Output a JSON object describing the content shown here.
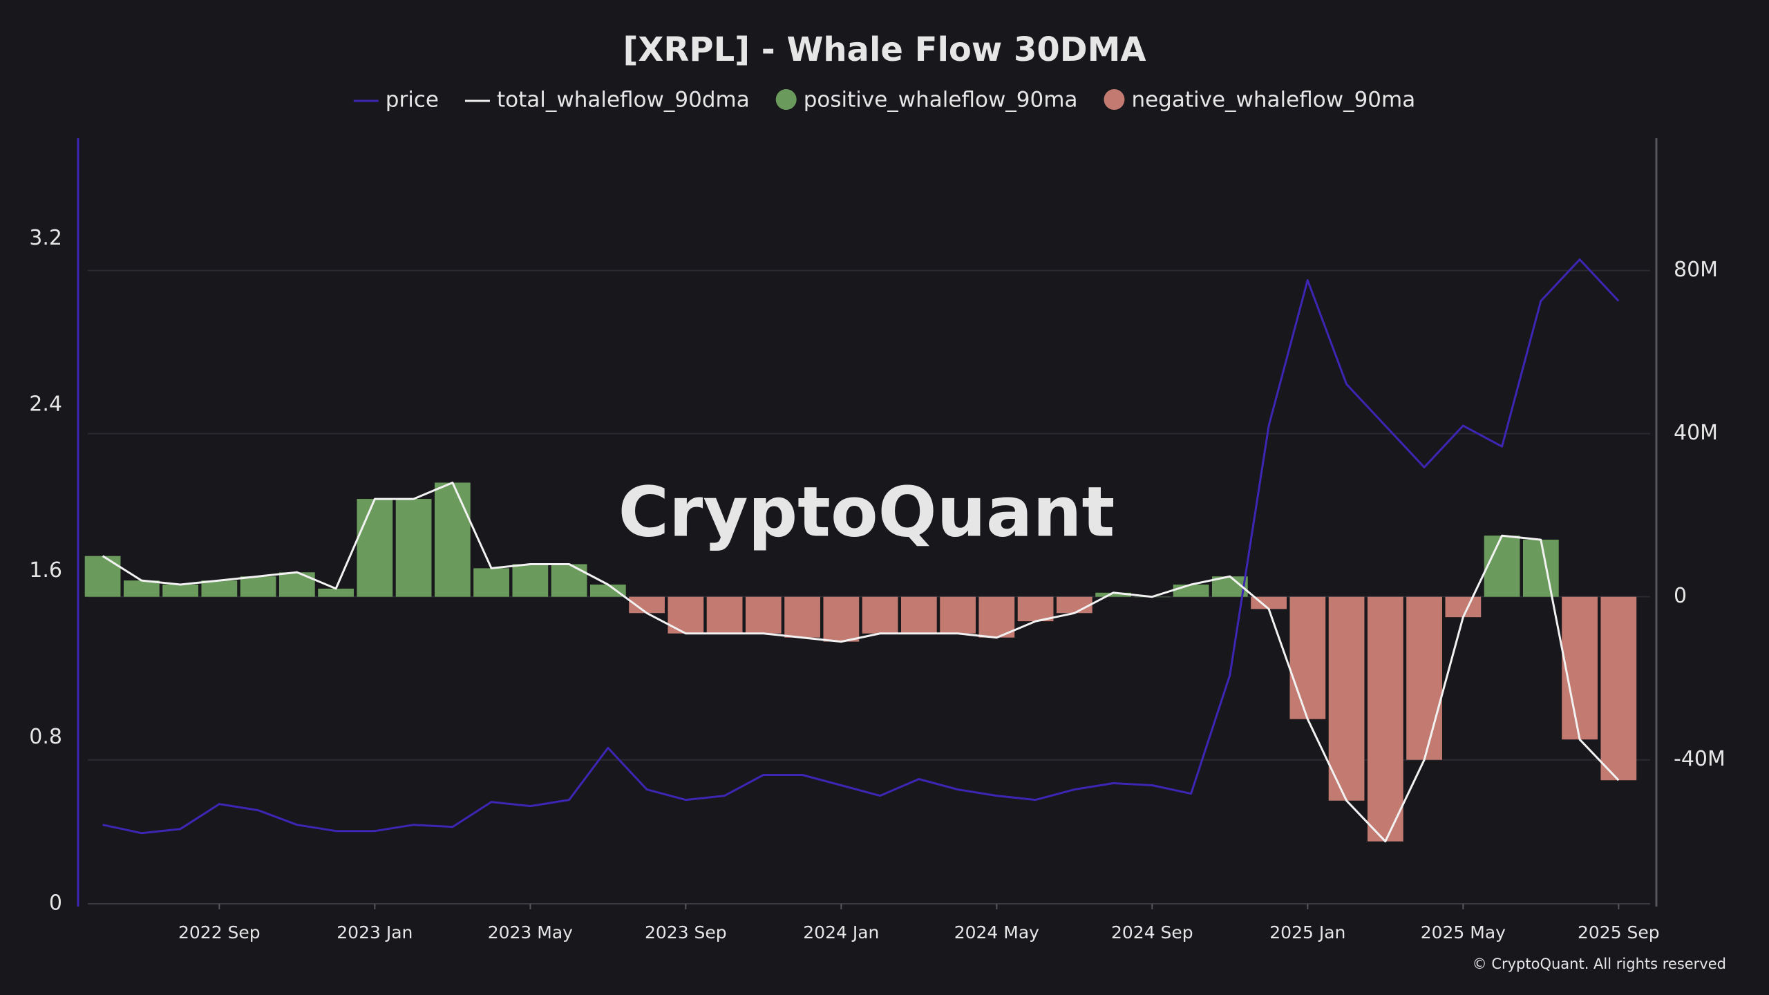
{
  "chart_data": {
    "type": "bar_line_dual",
    "title": "[XRPL] - Whale Flow 30DMA",
    "watermark": "CryptoQuant",
    "copyright": "© CryptoQuant. All rights reserved",
    "x": [
      "2022-06",
      "2022-07",
      "2022-08",
      "2022-09",
      "2022-10",
      "2022-11",
      "2022-12",
      "2023-01",
      "2023-02",
      "2023-03",
      "2023-04",
      "2023-05",
      "2023-06",
      "2023-07",
      "2023-08",
      "2023-09",
      "2023-10",
      "2023-11",
      "2023-12",
      "2024-01",
      "2024-02",
      "2024-03",
      "2024-04",
      "2024-05",
      "2024-06",
      "2024-07",
      "2024-08",
      "2024-09",
      "2024-10",
      "2024-11",
      "2024-12",
      "2025-01",
      "2025-02",
      "2025-03",
      "2025-04",
      "2025-05",
      "2025-06",
      "2025-07",
      "2025-08",
      "2025-09"
    ],
    "xlim": [
      "2022-06",
      "2025-09"
    ],
    "xticks": [
      {
        "value": "2022-09",
        "label": "2022 Sep"
      },
      {
        "value": "2023-01",
        "label": "2023 Jan"
      },
      {
        "value": "2023-05",
        "label": "2023 May"
      },
      {
        "value": "2023-09",
        "label": "2023 Sep"
      },
      {
        "value": "2024-01",
        "label": "2024 Jan"
      },
      {
        "value": "2024-05",
        "label": "2024 May"
      },
      {
        "value": "2024-09",
        "label": "2024 Sep"
      },
      {
        "value": "2025-01",
        "label": "2025 Jan"
      },
      {
        "value": "2025-05",
        "label": "2025 May"
      },
      {
        "value": "2025-09",
        "label": "2025 Sep"
      }
    ],
    "ylim": [
      0,
      3.67
    ],
    "yticks": [
      0,
      0.8,
      1.6,
      2.4,
      3.2
    ],
    "y2lim": [
      -75300000,
      111800000
    ],
    "y2ticks": [
      {
        "value": -40000000,
        "label": "-40M"
      },
      0,
      {
        "value": 40000000,
        "label": "40M"
      },
      {
        "value": 80000000,
        "label": "80M"
      }
    ],
    "grid": "y2",
    "legend": "top",
    "series": [
      {
        "name": "price",
        "color": "#3f25b4",
        "mark": "line",
        "axis": "y",
        "values": [
          0.38,
          0.34,
          0.36,
          0.48,
          0.45,
          0.38,
          0.35,
          0.35,
          0.38,
          0.37,
          0.49,
          0.47,
          0.5,
          0.75,
          0.55,
          0.5,
          0.52,
          0.62,
          0.62,
          0.57,
          0.52,
          0.6,
          0.55,
          0.52,
          0.5,
          0.55,
          0.58,
          0.57,
          0.53,
          1.1,
          2.3,
          3.0,
          2.5,
          2.3,
          2.1,
          2.3,
          2.2,
          2.9,
          3.1,
          2.9
        ]
      },
      {
        "name": "total_whaleflow_90dma",
        "color": "#f2f2f2",
        "mark": "line",
        "axis": "y2",
        "values": [
          10000000,
          4000000,
          3000000,
          4000000,
          5000000,
          6000000,
          2000000,
          24000000,
          24000000,
          28000000,
          7000000,
          8000000,
          8000000,
          3000000,
          -4000000,
          -9000000,
          -9000000,
          -9000000,
          -10000000,
          -11000000,
          -9000000,
          -9000000,
          -9000000,
          -10000000,
          -6000000,
          -4000000,
          1000000,
          0,
          3000000,
          5000000,
          -3000000,
          -30000000,
          -50000000,
          -60000000,
          -40000000,
          -5000000,
          15000000,
          14000000,
          -35000000,
          -45000000
        ]
      },
      {
        "name": "positive_whaleflow_90ma",
        "color": "#6b9b5c",
        "mark": "bar",
        "axis": "y2",
        "values": [
          10000000,
          4000000,
          3000000,
          4000000,
          5000000,
          6000000,
          2000000,
          24000000,
          24000000,
          28000000,
          7000000,
          8000000,
          8000000,
          3000000,
          null,
          null,
          null,
          null,
          null,
          null,
          null,
          null,
          null,
          null,
          null,
          null,
          1000000,
          0,
          3000000,
          5000000,
          null,
          null,
          null,
          null,
          null,
          null,
          15000000,
          14000000,
          null,
          null
        ]
      },
      {
        "name": "negative_whaleflow_90ma",
        "color": "#c27a71",
        "mark": "bar",
        "axis": "y2",
        "values": [
          null,
          null,
          null,
          null,
          null,
          null,
          null,
          null,
          null,
          null,
          null,
          null,
          null,
          null,
          -4000000,
          -9000000,
          -9000000,
          -9000000,
          -10000000,
          -11000000,
          -9000000,
          -9000000,
          -9000000,
          -10000000,
          -6000000,
          -4000000,
          null,
          null,
          null,
          null,
          -3000000,
          -30000000,
          -50000000,
          -60000000,
          -40000000,
          -5000000,
          null,
          null,
          -35000000,
          -45000000
        ]
      }
    ]
  }
}
